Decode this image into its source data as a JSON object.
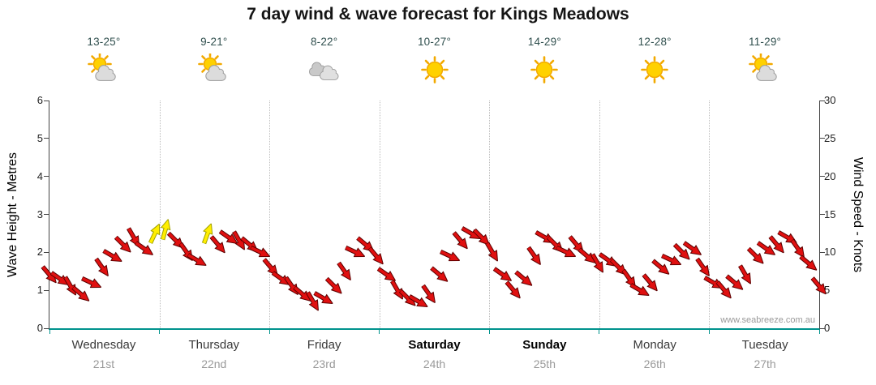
{
  "watermark": "www.seabreeze.com.au",
  "colors": {
    "arrow": "#e01010",
    "arrow_outline": "#5a0000",
    "gust_arrow": "#ffee00",
    "gust_outline": "#a0a000",
    "baseline": "#00938d",
    "temp_text": "#31504f",
    "grid": "#bcbcbc"
  },
  "days": [
    {
      "name": "Wednesday",
      "date": "21st",
      "temp": "13-25°",
      "icon": "partly-cloudy",
      "weekend": false
    },
    {
      "name": "Thursday",
      "date": "22nd",
      "temp": "9-21°",
      "icon": "partly-cloudy",
      "weekend": false
    },
    {
      "name": "Friday",
      "date": "23rd",
      "temp": "8-22°",
      "icon": "cloudy",
      "weekend": false
    },
    {
      "name": "Saturday",
      "date": "24th",
      "temp": "10-27°",
      "icon": "sunny",
      "weekend": true
    },
    {
      "name": "Sunday",
      "date": "25th",
      "temp": "14-29°",
      "icon": "sunny",
      "weekend": true
    },
    {
      "name": "Monday",
      "date": "26th",
      "temp": "12-28°",
      "icon": "sunny",
      "weekend": false
    },
    {
      "name": "Tuesday",
      "date": "27th",
      "temp": "11-29°",
      "icon": "partly-cloudy",
      "weekend": false
    }
  ],
  "chart_data": {
    "type": "scatter",
    "marker": "wind-direction-arrow",
    "title": "7 day wind & wave forecast for Kings Meadows",
    "y_left": {
      "label": "Wave Height - Metres",
      "min": 0,
      "max": 6,
      "ticks": [
        0,
        1,
        2,
        3,
        4,
        5,
        6
      ]
    },
    "y_right": {
      "label": "Wind Speed - Knots",
      "min": 0,
      "max": 30,
      "ticks": [
        0,
        5,
        10,
        15,
        20,
        25,
        30
      ]
    },
    "x_categories": [
      "Wednesday",
      "Thursday",
      "Friday",
      "Saturday",
      "Sunday",
      "Monday",
      "Tuesday"
    ],
    "grid": "vertical-dotted-day-boundaries",
    "legend": "off",
    "wind_knots": [
      7,
      6.5,
      5.5,
      4.5,
      6,
      8,
      9.5,
      11,
      12,
      10.5,
      12.5,
      13,
      11.5,
      10,
      9,
      12.5,
      11,
      12,
      11.5,
      11,
      10,
      8,
      6.5,
      5.5,
      4.5,
      3.5,
      4,
      5.5,
      7.5,
      10,
      11,
      9.5,
      7,
      5,
      4,
      3.5,
      4.5,
      7,
      9.5,
      11.5,
      12.5,
      12,
      10,
      7,
      5,
      6.5,
      9.5,
      12,
      11,
      10,
      11,
      9.5,
      8.5,
      9,
      8,
      6.5,
      5,
      6,
      8,
      9,
      10,
      10.5,
      8,
      6,
      5,
      6,
      7,
      9.5,
      10.5,
      11,
      12,
      10.5,
      8.5,
      5.5
    ],
    "arrow_dir_deg": [
      50,
      35,
      60,
      40,
      25,
      55,
      30,
      45,
      60,
      35,
      -65,
      -75,
      45,
      55,
      30,
      -70,
      50,
      35,
      60,
      40,
      25,
      50,
      35,
      55,
      40,
      60,
      30,
      45,
      55,
      25,
      40,
      50,
      35,
      60,
      45,
      30,
      55,
      40,
      25,
      50,
      30,
      45,
      60,
      35,
      50,
      40,
      55,
      30,
      45,
      25,
      50,
      40,
      60,
      35,
      45,
      55,
      30,
      50,
      40,
      25,
      45,
      35,
      55,
      30,
      50,
      40,
      60,
      45,
      35,
      50,
      30,
      55,
      40,
      50
    ],
    "gust_indices": [
      10,
      11,
      15
    ]
  }
}
